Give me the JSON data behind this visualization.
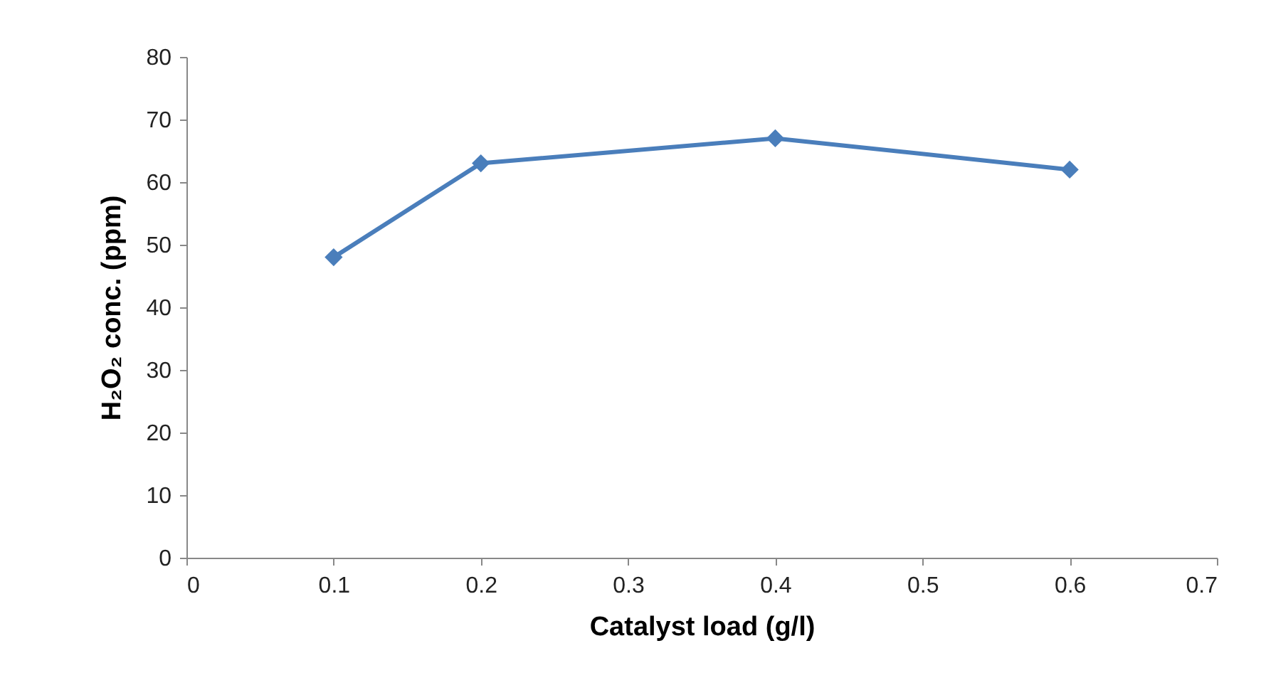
{
  "chart_data": {
    "type": "line",
    "xlabel": "Catalyst load (g/l)",
    "ylabel": "H₂O₂ conc. (ppm)",
    "x": [
      0.1,
      0.2,
      0.4,
      0.6
    ],
    "series": [
      {
        "color": "#4a7ebb",
        "values": [
          48,
          63,
          67,
          62
        ]
      }
    ],
    "xlim": [
      0,
      0.7
    ],
    "xticks": [
      0,
      0.1,
      0.2,
      0.3,
      0.4,
      0.5,
      0.6,
      0.7
    ],
    "ylim": [
      0,
      80
    ],
    "yticks": [
      0,
      10,
      20,
      30,
      40,
      50,
      60,
      70,
      80
    ],
    "grid": false,
    "marker": "diamond",
    "line_style": "solid"
  }
}
